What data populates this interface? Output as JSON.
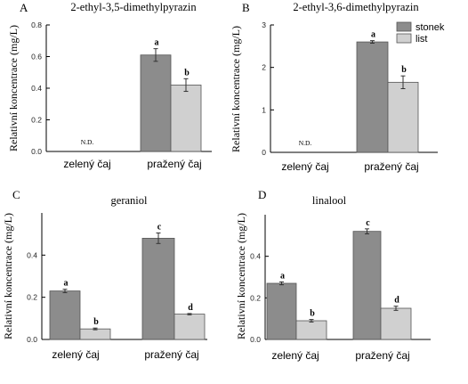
{
  "colors": {
    "stonek": "#8c8c8c",
    "list": "#d0d0d0",
    "axis": "#000000"
  },
  "legend": {
    "items": [
      "stonek",
      "list"
    ],
    "position": "top-right of panel B"
  },
  "chart_data": [
    {
      "type": "bar",
      "panel_label": "A",
      "title": "2-ethyl-3,5-dimethylpyrazin",
      "ylabel": "Relativní koncentrace (mg/L)",
      "xlabel": "",
      "categories": [
        "zelený čaj",
        "pražený čaj"
      ],
      "ylim": [
        0,
        0.8
      ],
      "yticks": [
        "0.0",
        "0.2",
        "0.4",
        "0.6",
        "0.8"
      ],
      "series": [
        {
          "name": "stonek",
          "values": [
            null,
            0.61
          ],
          "errors": [
            null,
            0.04
          ],
          "sig": [
            "",
            "a"
          ]
        },
        {
          "name": "list",
          "values": [
            null,
            0.42
          ],
          "errors": [
            null,
            0.04
          ],
          "sig": [
            "",
            "b"
          ]
        }
      ],
      "annotations": [
        {
          "category": "zelený čaj",
          "text": "N.D."
        }
      ]
    },
    {
      "type": "bar",
      "panel_label": "B",
      "title": "2-ethyl-3,6-dimethylpyrazin",
      "ylabel": "Relativní koncentrace (mg/L)",
      "xlabel": "",
      "categories": [
        "zelený čaj",
        "pražený čaj"
      ],
      "ylim": [
        0,
        3
      ],
      "yticks": [
        "0",
        "1",
        "2",
        "3"
      ],
      "series": [
        {
          "name": "stonek",
          "values": [
            null,
            2.6
          ],
          "errors": [
            null,
            0.03
          ],
          "sig": [
            "",
            "a"
          ]
        },
        {
          "name": "list",
          "values": [
            null,
            1.65
          ],
          "errors": [
            null,
            0.15
          ],
          "sig": [
            "",
            "b"
          ]
        }
      ],
      "annotations": [
        {
          "category": "zelený čaj",
          "text": "N.D."
        }
      ]
    },
    {
      "type": "bar",
      "panel_label": "C",
      "title": "geraniol",
      "ylabel": "Relativní koncentrace (mg/L)",
      "xlabel": "",
      "categories": [
        "zelený čaj",
        "pražený čaj"
      ],
      "ylim": [
        0,
        0.6
      ],
      "yticks": [
        "0.0",
        "0.2",
        "0.4"
      ],
      "series": [
        {
          "name": "stonek",
          "values": [
            0.23,
            0.48
          ],
          "errors": [
            0.008,
            0.025
          ],
          "sig": [
            "a",
            "c"
          ]
        },
        {
          "name": "list",
          "values": [
            0.05,
            0.12
          ],
          "errors": [
            0.004,
            0.003
          ],
          "sig": [
            "b",
            "d"
          ]
        }
      ],
      "annotations": []
    },
    {
      "type": "bar",
      "panel_label": "D",
      "title": "linalool",
      "ylabel": "Relativní koncentrace (mg/L)",
      "xlabel": "",
      "categories": [
        "zelený čaj",
        "pražený čaj"
      ],
      "ylim": [
        0,
        0.6
      ],
      "yticks": [
        "0.0",
        "0.2",
        "0.4"
      ],
      "series": [
        {
          "name": "stonek",
          "values": [
            0.27,
            0.52
          ],
          "errors": [
            0.007,
            0.012
          ],
          "sig": [
            "a",
            "c"
          ]
        },
        {
          "name": "list",
          "values": [
            0.09,
            0.15
          ],
          "errors": [
            0.006,
            0.01
          ],
          "sig": [
            "b",
            "d"
          ]
        }
      ],
      "annotations": []
    }
  ]
}
